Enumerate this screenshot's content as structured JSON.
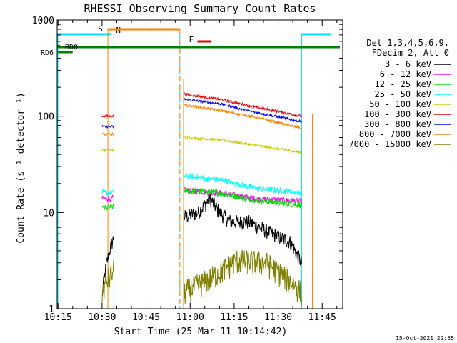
{
  "chart_data": {
    "type": "line",
    "title": "RHESSI Observing Summary Count Rates",
    "xlabel": "Start Time (25-Mar-11 10:14:42)",
    "ylabel": "Count Rate (s⁻¹ detector⁻¹)",
    "y_scale": "log",
    "ylim": [
      1,
      1000
    ],
    "xlim": [
      "10:14:42",
      "11:52:00"
    ],
    "x_ticks": [
      "10:15",
      "10:30",
      "10:45",
      "11:00",
      "11:15",
      "11:30",
      "11:45"
    ],
    "y_ticks": [
      "1",
      "10",
      "100",
      "1000"
    ],
    "timestamp": "15-Oct-2021 22:55",
    "legend_header": [
      "Det 1,3,4,5,6,9,",
      "FDecim 2, Att 0"
    ],
    "flags": {
      "S": {
        "label": "S",
        "color": "#ff8000",
        "interval": [
          "10:31:30",
          "10:56:30"
        ]
      },
      "N": {
        "label": "N",
        "color": "#00e0ff"
      },
      "F": {
        "label": "F",
        "color": "#e00000",
        "interval": [
          "11:02:30",
          "11:07:00"
        ]
      },
      "RD0": {
        "label": "RD0",
        "color": "#008000",
        "interval": [
          "10:15:00",
          "11:51:00"
        ]
      },
      "RD6": {
        "label": "RD6",
        "color": "#008000",
        "interval": [
          "10:15:00",
          "10:20:00"
        ]
      }
    },
    "segments": [
      {
        "start": "10:30:00",
        "end": "10:34:00"
      },
      {
        "start": "10:58:00",
        "end": "11:38:00"
      }
    ],
    "series": [
      {
        "name": "3 - 6 keV",
        "color": "#000000",
        "seg1": [
          1.3,
          5.5
        ],
        "seg2_profile": [
          [
            0,
            9
          ],
          [
            0.12,
            10
          ],
          [
            0.22,
            14
          ],
          [
            0.3,
            10
          ],
          [
            0.4,
            8
          ],
          [
            0.55,
            8
          ],
          [
            0.75,
            6
          ],
          [
            0.9,
            5
          ],
          [
            1.0,
            3
          ]
        ],
        "noise": 0.12
      },
      {
        "name": "6 - 12 keV",
        "color": "#ff00ff",
        "seg1": [
          14,
          14
        ],
        "seg2_profile": [
          [
            0,
            17
          ],
          [
            0.3,
            16
          ],
          [
            0.6,
            14
          ],
          [
            1.0,
            13
          ]
        ],
        "noise": 0.05
      },
      {
        "name": "12 - 25 keV",
        "color": "#00e000",
        "seg1": [
          11,
          11.5
        ],
        "seg2_profile": [
          [
            0,
            17
          ],
          [
            0.3,
            16
          ],
          [
            0.6,
            13.5
          ],
          [
            1.0,
            12
          ]
        ],
        "noise": 0.05
      },
      {
        "name": "25 - 50 keV",
        "color": "#00ffff",
        "seg1": [
          16,
          16
        ],
        "seg2_profile": [
          [
            0,
            24
          ],
          [
            0.3,
            22
          ],
          [
            0.6,
            18
          ],
          [
            1.0,
            16
          ]
        ],
        "noise": 0.05
      },
      {
        "name": "50 - 100 keV",
        "color": "#cccc00",
        "seg1": [
          44,
          45
        ],
        "seg2_profile": [
          [
            0,
            60
          ],
          [
            0.3,
            57
          ],
          [
            0.6,
            50
          ],
          [
            1.0,
            42
          ]
        ],
        "noise": 0.02
      },
      {
        "name": "100 - 300 keV",
        "color": "#e00000",
        "seg1": [
          100,
          100
        ],
        "seg2_profile": [
          [
            0,
            170
          ],
          [
            0.3,
            150
          ],
          [
            0.6,
            125
          ],
          [
            1.0,
            100
          ]
        ],
        "noise": 0.02
      },
      {
        "name": "300 - 800 keV",
        "color": "#0000ff",
        "seg1": [
          78,
          78
        ],
        "seg2_profile": [
          [
            0,
            150
          ],
          [
            0.3,
            135
          ],
          [
            0.6,
            110
          ],
          [
            1.0,
            88
          ]
        ],
        "noise": 0.02
      },
      {
        "name": "800 - 7000 keV",
        "color": "#ff8000",
        "seg1": [
          65,
          65
        ],
        "seg2_profile": [
          [
            0,
            130
          ],
          [
            0.3,
            115
          ],
          [
            0.6,
            98
          ],
          [
            1.0,
            75
          ]
        ],
        "noise": 0.02
      },
      {
        "name": "7000 - 15000 keV",
        "color": "#808000",
        "seg1": [
          1.5,
          2.5
        ],
        "seg2_profile": [
          [
            0,
            1.5
          ],
          [
            0.2,
            2.0
          ],
          [
            0.45,
            3.2
          ],
          [
            0.7,
            3.0
          ],
          [
            0.85,
            2.2
          ],
          [
            1.0,
            1.5
          ]
        ],
        "noise": 0.2
      }
    ]
  }
}
